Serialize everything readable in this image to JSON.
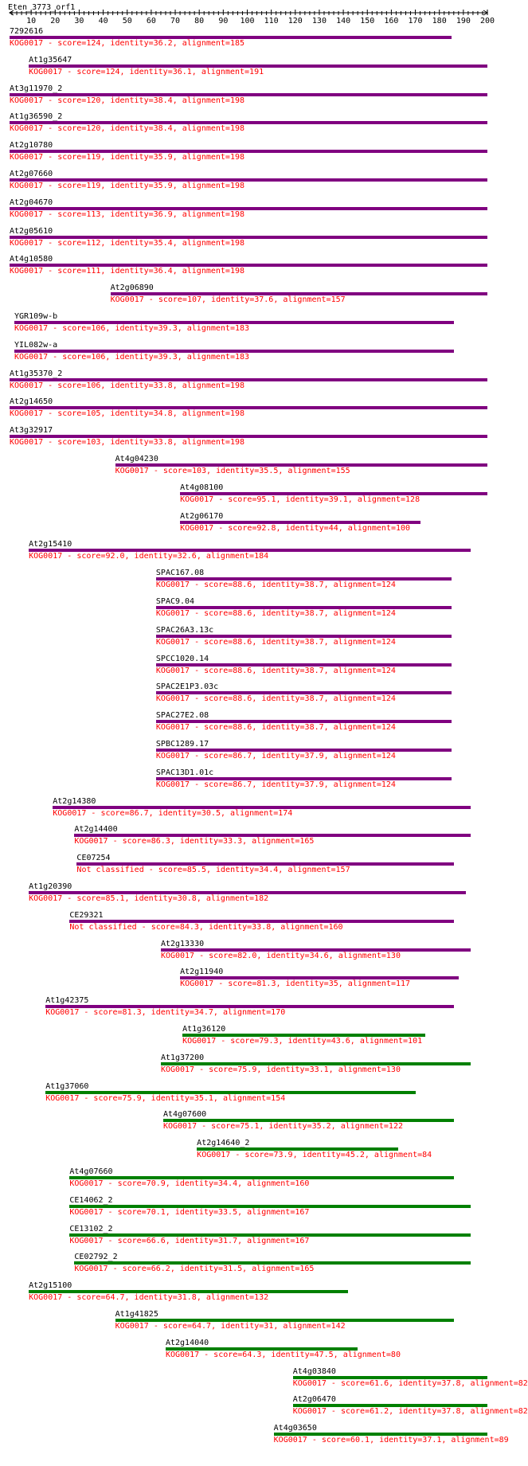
{
  "query": {
    "name": "Eten_3773_orf1",
    "length": 200
  },
  "axis": {
    "ticks": [
      "10",
      "20",
      "30",
      "40",
      "50",
      "60",
      "70",
      "80",
      "90",
      "100",
      "110",
      "120",
      "130",
      "140",
      "150",
      "160",
      "170",
      "180",
      "190",
      "200"
    ]
  },
  "colors": {
    "purple": "#800080",
    "green": "#008000",
    "text": "#ff0000",
    "axis": "#000000"
  },
  "hits": [
    {
      "name": "7292616",
      "start": 1,
      "end": 185,
      "color": "purple",
      "desc": "KOG0017 - score=124, identity=36.2, alignment=185"
    },
    {
      "name": "At1g35647",
      "start": 9,
      "end": 200,
      "color": "purple",
      "desc": "KOG0017 - score=124, identity=36.1, alignment=191"
    },
    {
      "name": "At3g11970_2",
      "start": 1,
      "end": 200,
      "color": "purple",
      "desc": "KOG0017 - score=120, identity=38.4, alignment=198"
    },
    {
      "name": "At1g36590_2",
      "start": 1,
      "end": 200,
      "color": "purple",
      "desc": "KOG0017 - score=120, identity=38.4, alignment=198"
    },
    {
      "name": "At2g10780",
      "start": 1,
      "end": 200,
      "color": "purple",
      "desc": "KOG0017 - score=119, identity=35.9, alignment=198"
    },
    {
      "name": "At2g07660",
      "start": 1,
      "end": 200,
      "color": "purple",
      "desc": "KOG0017 - score=119, identity=35.9, alignment=198"
    },
    {
      "name": "At2g04670",
      "start": 1,
      "end": 200,
      "color": "purple",
      "desc": "KOG0017 - score=113, identity=36.9, alignment=198"
    },
    {
      "name": "At2g05610",
      "start": 1,
      "end": 200,
      "color": "purple",
      "desc": "KOG0017 - score=112, identity=35.4, alignment=198"
    },
    {
      "name": "At4g10580",
      "start": 1,
      "end": 200,
      "color": "purple",
      "desc": "KOG0017 - score=111, identity=36.4, alignment=198"
    },
    {
      "name": "At2g06890",
      "start": 43,
      "end": 200,
      "color": "purple",
      "desc": "KOG0017 - score=107, identity=37.6, alignment=157"
    },
    {
      "name": "YGR109w-b",
      "start": 3,
      "end": 186,
      "color": "purple",
      "desc": "KOG0017 - score=106, identity=39.3, alignment=183"
    },
    {
      "name": "YIL082w-a",
      "start": 3,
      "end": 186,
      "color": "purple",
      "desc": "KOG0017 - score=106, identity=39.3, alignment=183"
    },
    {
      "name": "At1g35370_2",
      "start": 1,
      "end": 200,
      "color": "purple",
      "desc": "KOG0017 - score=106, identity=33.8, alignment=198"
    },
    {
      "name": "At2g14650",
      "start": 1,
      "end": 200,
      "color": "purple",
      "desc": "KOG0017 - score=105, identity=34.8, alignment=198"
    },
    {
      "name": "At3g32917",
      "start": 1,
      "end": 200,
      "color": "purple",
      "desc": "KOG0017 - score=103, identity=33.8, alignment=198"
    },
    {
      "name": "At4g04230",
      "start": 45,
      "end": 200,
      "color": "purple",
      "desc": "KOG0017 - score=103, identity=35.5, alignment=155"
    },
    {
      "name": "At4g08100",
      "start": 72,
      "end": 200,
      "color": "purple",
      "desc": "KOG0017 - score=95.1, identity=39.1, alignment=128"
    },
    {
      "name": "At2g06170",
      "start": 72,
      "end": 172,
      "color": "purple",
      "desc": "KOG0017 - score=92.8, identity=44, alignment=100"
    },
    {
      "name": "At2g15410",
      "start": 9,
      "end": 193,
      "color": "purple",
      "desc": "KOG0017 - score=92.0, identity=32.6, alignment=184"
    },
    {
      "name": "SPAC167.08",
      "start": 62,
      "end": 185,
      "color": "purple",
      "desc": "KOG0017 - score=88.6, identity=38.7, alignment=124"
    },
    {
      "name": "SPAC9.04",
      "start": 62,
      "end": 185,
      "color": "purple",
      "desc": "KOG0017 - score=88.6, identity=38.7, alignment=124"
    },
    {
      "name": "SPAC26A3.13c",
      "start": 62,
      "end": 185,
      "color": "purple",
      "desc": "KOG0017 - score=88.6, identity=38.7, alignment=124"
    },
    {
      "name": "SPCC1020.14",
      "start": 62,
      "end": 185,
      "color": "purple",
      "desc": "KOG0017 - score=88.6, identity=38.7, alignment=124"
    },
    {
      "name": "SPAC2E1P3.03c",
      "start": 62,
      "end": 185,
      "color": "purple",
      "desc": "KOG0017 - score=88.6, identity=38.7, alignment=124"
    },
    {
      "name": "SPAC27E2.08",
      "start": 62,
      "end": 185,
      "color": "purple",
      "desc": "KOG0017 - score=88.6, identity=38.7, alignment=124"
    },
    {
      "name": "SPBC1289.17",
      "start": 62,
      "end": 185,
      "color": "purple",
      "desc": "KOG0017 - score=86.7, identity=37.9, alignment=124"
    },
    {
      "name": "SPAC13D1.01c",
      "start": 62,
      "end": 185,
      "color": "purple",
      "desc": "KOG0017 - score=86.7, identity=37.9, alignment=124"
    },
    {
      "name": "At2g14380",
      "start": 19,
      "end": 193,
      "color": "purple",
      "desc": "KOG0017 - score=86.7, identity=30.5, alignment=174"
    },
    {
      "name": "At2g14400",
      "start": 28,
      "end": 193,
      "color": "purple",
      "desc": "KOG0017 - score=86.3, identity=33.3, alignment=165"
    },
    {
      "name": "CE07254",
      "start": 29,
      "end": 186,
      "color": "purple",
      "desc": "Not classified - score=85.5, identity=34.4, alignment=157"
    },
    {
      "name": "At1g20390",
      "start": 9,
      "end": 191,
      "color": "purple",
      "desc": "KOG0017 - score=85.1, identity=30.8, alignment=182"
    },
    {
      "name": "CE29321",
      "start": 26,
      "end": 186,
      "color": "purple",
      "desc": "Not classified - score=84.3, identity=33.8, alignment=160"
    },
    {
      "name": "At2g13330",
      "start": 64,
      "end": 193,
      "color": "purple",
      "desc": "KOG0017 - score=82.0, identity=34.6, alignment=130"
    },
    {
      "name": "At2g11940",
      "start": 72,
      "end": 188,
      "color": "purple",
      "desc": "KOG0017 - score=81.3, identity=35, alignment=117"
    },
    {
      "name": "At1g42375",
      "start": 16,
      "end": 186,
      "color": "purple",
      "desc": "KOG0017 - score=81.3, identity=34.7, alignment=170"
    },
    {
      "name": "At1g36120",
      "start": 73,
      "end": 174,
      "color": "green",
      "desc": "KOG0017 - score=79.3, identity=43.6, alignment=101"
    },
    {
      "name": "At1g37200",
      "start": 64,
      "end": 193,
      "color": "green",
      "desc": "KOG0017 - score=75.9, identity=33.1, alignment=130"
    },
    {
      "name": "At1g37060",
      "start": 16,
      "end": 170,
      "color": "green",
      "desc": "KOG0017 - score=75.9, identity=35.1, alignment=154"
    },
    {
      "name": "At4g07600",
      "start": 65,
      "end": 186,
      "color": "green",
      "desc": "KOG0017 - score=75.1, identity=35.2, alignment=122"
    },
    {
      "name": "At2g14640_2",
      "start": 79,
      "end": 163,
      "color": "green",
      "desc": "KOG0017 - score=73.9, identity=45.2, alignment=84"
    },
    {
      "name": "At4g07660",
      "start": 26,
      "end": 186,
      "color": "green",
      "desc": "KOG0017 - score=70.9, identity=34.4, alignment=160"
    },
    {
      "name": "CE14062_2",
      "start": 26,
      "end": 193,
      "color": "green",
      "desc": "KOG0017 - score=70.1, identity=33.5, alignment=167"
    },
    {
      "name": "CE13102_2",
      "start": 26,
      "end": 193,
      "color": "green",
      "desc": "KOG0017 - score=66.6, identity=31.7, alignment=167"
    },
    {
      "name": "CE02792_2",
      "start": 28,
      "end": 193,
      "color": "green",
      "desc": "KOG0017 - score=66.2, identity=31.5, alignment=165"
    },
    {
      "name": "At2g15100",
      "start": 9,
      "end": 142,
      "color": "green",
      "desc": "KOG0017 - score=64.7, identity=31.8, alignment=132"
    },
    {
      "name": "At1g41825",
      "start": 45,
      "end": 186,
      "color": "green",
      "desc": "KOG0017 - score=64.7, identity=31, alignment=142"
    },
    {
      "name": "At2g14040",
      "start": 66,
      "end": 146,
      "color": "green",
      "desc": "KOG0017 - score=64.3, identity=47.5, alignment=80"
    },
    {
      "name": "At4g03840",
      "start": 119,
      "end": 200,
      "color": "green",
      "desc": "KOG0017 - score=61.6, identity=37.8, alignment=82"
    },
    {
      "name": "At2g06470",
      "start": 119,
      "end": 200,
      "color": "green",
      "desc": "KOG0017 - score=61.2, identity=37.8, alignment=82"
    },
    {
      "name": "At4g03650",
      "start": 111,
      "end": 200,
      "color": "green",
      "desc": "KOG0017 - score=60.1, identity=37.1, alignment=89"
    }
  ]
}
